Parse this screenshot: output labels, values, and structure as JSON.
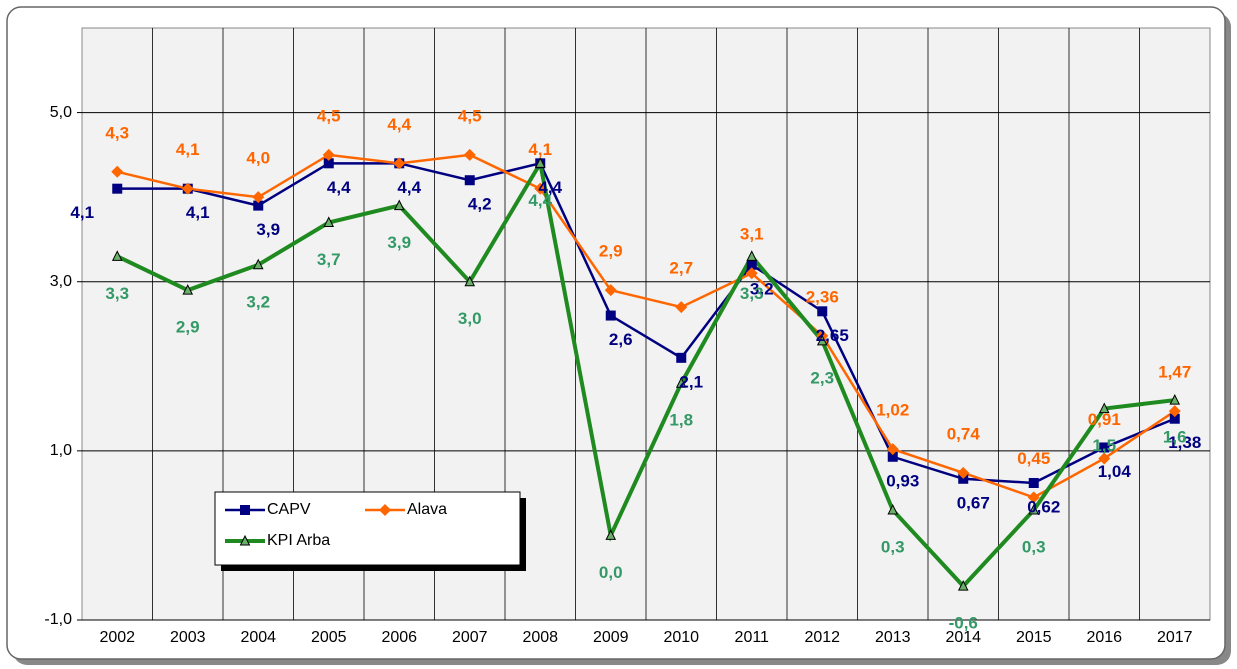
{
  "chart_data": {
    "type": "line",
    "categories": [
      "2002",
      "2003",
      "2004",
      "2005",
      "2006",
      "2007",
      "2008",
      "2009",
      "2010",
      "2011",
      "2012",
      "2013",
      "2014",
      "2015",
      "2016",
      "2017"
    ],
    "ylim": [
      -1,
      6
    ],
    "yticks": [
      {
        "value": -1,
        "label": "-1,0"
      },
      {
        "value": 1,
        "label": "1,0"
      },
      {
        "value": 3,
        "label": "3,0"
      },
      {
        "value": 5,
        "label": "5,0"
      }
    ],
    "grid": true,
    "legend": "lower left",
    "series": [
      {
        "name": "CAPV",
        "color": "#000080",
        "marker": "square",
        "values": [
          4.1,
          4.1,
          3.9,
          4.4,
          4.4,
          4.2,
          4.4,
          2.6,
          2.1,
          3.2,
          2.65,
          0.93,
          0.67,
          0.62,
          1.04,
          1.38
        ],
        "value_labels": [
          "4,1",
          "4,1",
          "3,9",
          "4,4",
          "4,4",
          "4,2",
          "4,4",
          "2,6",
          "2,1",
          "3,2",
          "2,65",
          "0,93",
          "0,67",
          "0,62",
          "1,04",
          "1,38"
        ]
      },
      {
        "name": "Alava",
        "color": "#ff6600",
        "marker": "diamond",
        "values": [
          4.3,
          4.1,
          4.0,
          4.5,
          4.4,
          4.5,
          4.1,
          2.9,
          2.7,
          3.1,
          2.36,
          1.02,
          0.74,
          0.45,
          0.91,
          1.47
        ],
        "value_labels": [
          "4,3",
          "4,1",
          "4,0",
          "4,5",
          "4,4",
          "4,5",
          "4,1",
          "2,9",
          "2,7",
          "3,1",
          "2,36",
          "1,02",
          "0,74",
          "0,45",
          "0,91",
          "1,47"
        ]
      },
      {
        "name": "KPI Arba",
        "color": "#1f8a1f",
        "marker": "triangle",
        "values": [
          3.3,
          2.9,
          3.2,
          3.7,
          3.9,
          3.0,
          4.4,
          0.0,
          1.8,
          3.3,
          2.3,
          0.3,
          -0.6,
          0.3,
          1.5,
          1.6
        ],
        "value_labels": [
          "3,3",
          "2,9",
          "3,2",
          "3,7",
          "3,9",
          "3,0",
          "4,4",
          "0,0",
          "1,8",
          "3,3",
          "2,3",
          "0,3",
          "-0,6",
          "0,3",
          "1,5",
          "1,6"
        ]
      }
    ]
  }
}
